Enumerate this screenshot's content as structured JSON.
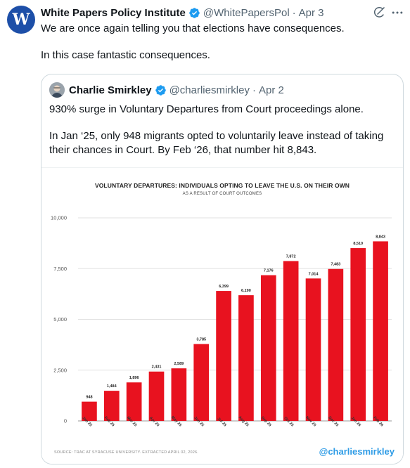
{
  "tweet": {
    "author_name": "White Papers Policy Institute",
    "handle": "@WhitePapersPol",
    "time": "Apr 3",
    "avatar_letter": "W",
    "line1": "We are once again telling you that elections have consequences.",
    "line2": "In this case fantastic consequences."
  },
  "quote": {
    "author_name": "Charlie Smirkley",
    "handle": "@charliesmirkley",
    "time": "Apr 2",
    "line1": "930% surge in Voluntary Departures from Court proceedings alone.",
    "line2": "In Jan ‘25, only 948 migrants opted to voluntarily leave instead of taking their chances in Court. By Feb ‘26, that number hit 8,843."
  },
  "colors": {
    "verified": "#1d9bf0",
    "bar": "#e8121f",
    "watermark": "#2f9ce6"
  },
  "chart_data": {
    "type": "bar",
    "title": "VOLUNTARY DEPARTURES: INDIVIDUALS OPTING TO LEAVE THE U.S. ON THEIR OWN",
    "subtitle": "AS A RESULT OF COURT OUTCOMES",
    "categories": [
      "Jan 25",
      "Feb 25",
      "Mar 25",
      "Apr 25",
      "May 25",
      "Jun 25",
      "Jul 25",
      "Aug 25",
      "Sep 25",
      "Oct 25",
      "Nov 25",
      "Dec 25",
      "Jan 26",
      "Feb 26"
    ],
    "values": [
      948,
      1484,
      1896,
      2431,
      2589,
      3785,
      6399,
      6190,
      7176,
      7872,
      7014,
      7483,
      8510,
      8843
    ],
    "value_labels": [
      "948",
      "1,484",
      "1,896",
      "2,431",
      "2,589",
      "3,785",
      "6,399",
      "6,190",
      "7,176",
      "7,872",
      "7,014",
      "7,483",
      "8,510",
      "8,843"
    ],
    "yticks": [
      0,
      2500,
      5000,
      7500,
      10000
    ],
    "ytick_labels": [
      "0",
      "2,500",
      "5,000",
      "7,500",
      "10,000"
    ],
    "ylim": [
      0,
      10000
    ],
    "grid": true,
    "source": "SOURCE: TRAC AT SYRACUSE UNIVERSITY. EXTRACTED APRIL 02, 2026.",
    "watermark": "@charliesmirkley"
  }
}
